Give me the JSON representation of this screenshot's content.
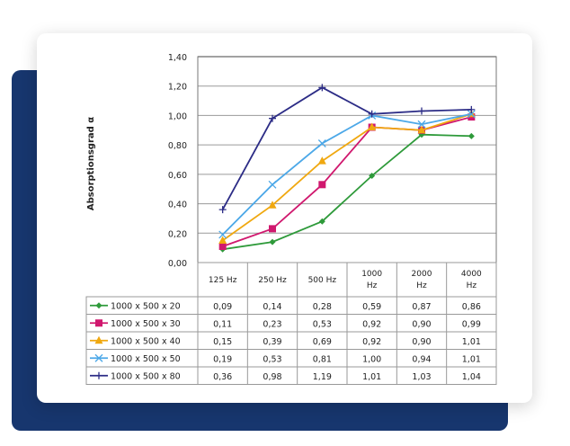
{
  "chart_data": {
    "type": "line",
    "title": "",
    "xlabel": "",
    "ylabel": "Absorptionsgrad α",
    "ylim": [
      0,
      1.4
    ],
    "yticks": [
      "0,00",
      "0,20",
      "0,40",
      "0,60",
      "0,80",
      "1,00",
      "1,20",
      "1,40"
    ],
    "grid": true,
    "categories": [
      "125 Hz",
      "250 Hz",
      "500 Hz",
      "1000 Hz",
      "2000 Hz",
      "4000 Hz"
    ],
    "legend_placement": "data-table-left",
    "series": [
      {
        "name": "1000 x 500 x 20",
        "color": "#2e9a3a",
        "marker": "diamond",
        "values": [
          0.09,
          0.14,
          0.28,
          0.59,
          0.87,
          0.86
        ],
        "labels": [
          "0,09",
          "0,14",
          "0,28",
          "0,59",
          "0,87",
          "0,86"
        ]
      },
      {
        "name": "1000 x 500 x 30",
        "color": "#d0186e",
        "marker": "square",
        "values": [
          0.11,
          0.23,
          0.53,
          0.92,
          0.9,
          0.99
        ],
        "labels": [
          "0,11",
          "0,23",
          "0,53",
          "0,92",
          "0,90",
          "0,99"
        ]
      },
      {
        "name": "1000 x 500 x 40",
        "color": "#f0a810",
        "marker": "triangle",
        "values": [
          0.15,
          0.39,
          0.69,
          0.92,
          0.9,
          1.01
        ],
        "labels": [
          "0,15",
          "0,39",
          "0,69",
          "0,92",
          "0,90",
          "1,01"
        ]
      },
      {
        "name": "1000 x 500 x 50",
        "color": "#4ca8e8",
        "marker": "x",
        "values": [
          0.19,
          0.53,
          0.81,
          1.0,
          0.94,
          1.01
        ],
        "labels": [
          "0,19",
          "0,53",
          "0,81",
          "1,00",
          "0,94",
          "1,01"
        ]
      },
      {
        "name": "1000 x 500 x 80",
        "color": "#2c2c86",
        "marker": "plus",
        "values": [
          0.36,
          0.98,
          1.19,
          1.01,
          1.03,
          1.04
        ],
        "labels": [
          "0,36",
          "0,98",
          "1,19",
          "1,01",
          "1,03",
          "1,04"
        ]
      }
    ]
  }
}
